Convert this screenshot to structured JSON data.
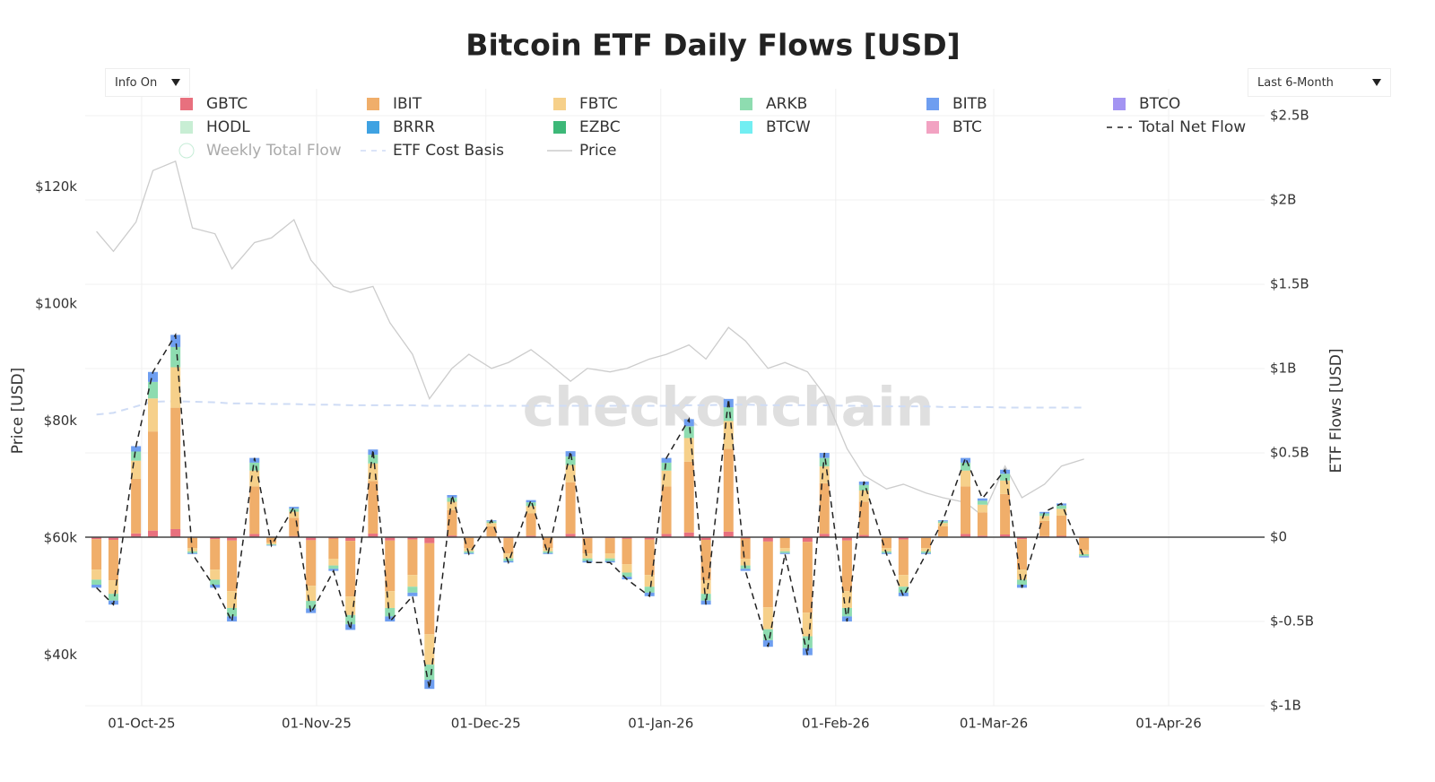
{
  "controls": {
    "info": "Info On",
    "range": "Last 6-Month"
  },
  "chart_data": {
    "type": "bar",
    "title": "Bitcoin ETF Daily Flows [USD]",
    "watermark": "checkonchain",
    "y_label": "Price [USD]",
    "y2_label": "ETF Flows [USD]",
    "x": [
      "2025-09-23",
      "2025-09-26",
      "2025-09-30",
      "2025-10-03",
      "2025-10-07",
      "2025-10-10",
      "2025-10-14",
      "2025-10-17",
      "2025-10-21",
      "2025-10-24",
      "2025-10-28",
      "2025-10-31",
      "2025-11-04",
      "2025-11-07",
      "2025-11-11",
      "2025-11-14",
      "2025-11-18",
      "2025-11-21",
      "2025-11-25",
      "2025-11-28",
      "2025-12-02",
      "2025-12-05",
      "2025-12-09",
      "2025-12-12",
      "2025-12-16",
      "2025-12-19",
      "2025-12-23",
      "2025-12-26",
      "2025-12-30",
      "2026-01-02",
      "2026-01-06",
      "2026-01-09",
      "2026-01-13",
      "2026-01-16",
      "2026-01-20",
      "2026-01-23",
      "2026-01-27",
      "2026-01-30",
      "2026-02-03",
      "2026-02-06",
      "2026-02-10",
      "2026-02-13",
      "2026-02-17",
      "2026-02-20",
      "2026-02-24",
      "2026-02-27",
      "2026-03-03",
      "2026-03-06",
      "2026-03-10",
      "2026-03-13",
      "2026-03-17"
    ],
    "xlim": [
      "2025-09-21",
      "2026-04-18"
    ],
    "xticks": [
      {
        "value": "2025-10-01",
        "label": "01-Oct-25"
      },
      {
        "value": "2025-11-01",
        "label": "01-Nov-25"
      },
      {
        "value": "2025-12-01",
        "label": "01-Dec-25"
      },
      {
        "value": "2026-01-01",
        "label": "01-Jan-26"
      },
      {
        "value": "2026-02-01",
        "label": "01-Feb-26"
      },
      {
        "value": "2026-03-01",
        "label": "01-Mar-26"
      },
      {
        "value": "2026-04-01",
        "label": "01-Apr-26"
      }
    ],
    "ylim": [
      31340,
      132180
    ],
    "yticks": [
      {
        "value": 40000,
        "label": "$40k"
      },
      {
        "value": 60000,
        "label": "$60k"
      },
      {
        "value": 80000,
        "label": "$80k"
      },
      {
        "value": 100000,
        "label": "$100k"
      },
      {
        "value": 120000,
        "label": "$120k"
      }
    ],
    "y2lim": [
      -1000000000.0,
      2500000000.0
    ],
    "y2ticks": [
      {
        "value": -1000000000.0,
        "label": "$-1B"
      },
      {
        "value": -500000000.0,
        "label": "$-0.5B"
      },
      {
        "value": 0,
        "label": "$0"
      },
      {
        "value": 500000000.0,
        "label": "$0.5B"
      },
      {
        "value": 1000000000.0,
        "label": "$1B"
      },
      {
        "value": 1500000000.0,
        "label": "$1.5B"
      },
      {
        "value": 2000000000.0,
        "label": "$2B"
      },
      {
        "value": 2500000000.0,
        "label": "$2.5B"
      }
    ],
    "grid": true,
    "series": [
      {
        "name": "GBTC",
        "kind": "bar",
        "axis": "y2",
        "color": "#e8707e",
        "values": [
          -12000000.0,
          -16000000.0,
          22000000.0,
          39000000.0,
          48000000.0,
          -4000000.0,
          -12000000.0,
          -20000000.0,
          19000000.0,
          -2000000.0,
          7000000.0,
          -18000000.0,
          -8000000.0,
          -22000000.0,
          21000000.0,
          -20000000.0,
          -14000000.0,
          -36000000.0,
          10000000.0,
          -4000000.0,
          4000000.0,
          -6000000.0,
          9000000.0,
          -4000000.0,
          20000000.0,
          -6000000.0,
          -6000000.0,
          -10000000.0,
          -14000000.0,
          19000000.0,
          28000000.0,
          -16000000.0,
          33000000.0,
          -8000000.0,
          -26000000.0,
          -4000000.0,
          -28000000.0,
          20000000.0,
          -20000000.0,
          13000000.0,
          -4000000.0,
          -14000000.0,
          -4000000.0,
          4000000.0,
          19000000.0,
          9000000.0,
          16000000.0,
          -12000000.0,
          6000000.0,
          8000000.0,
          -5000000.0
        ]
      },
      {
        "name": "IBIT",
        "kind": "bar",
        "axis": "y2",
        "color": "#f0ae6a",
        "values": [
          -180000000.0,
          -240000000.0,
          324000000.0,
          588000000.0,
          720000000.0,
          -60000000.0,
          -180000000.0,
          -300000000.0,
          282000000.0,
          -30000000.0,
          108000000.0,
          -270000000.0,
          -120000000.0,
          -330000000.0,
          312000000.0,
          -300000000.0,
          -210000000.0,
          -540000000.0,
          150000000.0,
          -60000000.0,
          60000000.0,
          -90000000.0,
          132000000.0,
          -60000000.0,
          306000000.0,
          -90000000.0,
          -90000000.0,
          -150000000.0,
          -210000000.0,
          282000000.0,
          420000000.0,
          -240000000.0,
          492000000.0,
          -120000000.0,
          -390000000.0,
          -60000000.0,
          -420000000.0,
          300000000.0,
          -300000000.0,
          198000000.0,
          -60000000.0,
          -210000000.0,
          -60000000.0,
          60000000.0,
          282000000.0,
          138000000.0,
          240000000.0,
          -180000000.0,
          90000000.0,
          120000000.0,
          -72000000.0
        ]
      },
      {
        "name": "FBTC",
        "kind": "bar",
        "axis": "y2",
        "color": "#f6d08a",
        "values": [
          -60000000.0,
          -80000000.0,
          108000000.0,
          196000000.0,
          240000000.0,
          -20000000.0,
          -60000000.0,
          -100000000.0,
          94000000.0,
          -10000000.0,
          36000000.0,
          -90000000.0,
          -40000000.0,
          -110000000.0,
          104000000.0,
          -100000000.0,
          -70000000.0,
          -180000000.0,
          50000000.0,
          -20000000.0,
          20000000.0,
          -30000000.0,
          44000000.0,
          -20000000.0,
          102000000.0,
          -30000000.0,
          -30000000.0,
          -50000000.0,
          -70000000.0,
          94000000.0,
          140000000.0,
          -80000000.0,
          164000000.0,
          -40000000.0,
          -130000000.0,
          -20000000.0,
          -140000000.0,
          100000000.0,
          -100000000.0,
          66000000.0,
          -20000000.0,
          -70000000.0,
          -20000000.0,
          20000000.0,
          94000000.0,
          46000000.0,
          80000000.0,
          -60000000.0,
          30000000.0,
          40000000.0,
          -24000000.0
        ]
      },
      {
        "name": "ARKB",
        "kind": "bar",
        "axis": "y2",
        "color": "#8edcb0",
        "values": [
          -30000000.0,
          -40000000.0,
          54000000.0,
          98000000.0,
          120000000.0,
          -10000000.0,
          -30000000.0,
          -50000000.0,
          47000000.0,
          -5000000.0,
          18000000.0,
          -45000000.0,
          -20000000.0,
          -55000000.0,
          52000000.0,
          -50000000.0,
          -35000000.0,
          -90000000.0,
          25000000.0,
          -10000000.0,
          10000000.0,
          -15000000.0,
          22000000.0,
          -10000000.0,
          51000000.0,
          -15000000.0,
          -15000000.0,
          -25000000.0,
          -35000000.0,
          47000000.0,
          70000000.0,
          -40000000.0,
          82000000.0,
          -20000000.0,
          -65000000.0,
          -10000000.0,
          -70000000.0,
          50000000.0,
          -50000000.0,
          33000000.0,
          -10000000.0,
          -35000000.0,
          -10000000.0,
          10000000.0,
          47000000.0,
          23000000.0,
          40000000.0,
          -30000000.0,
          15000000.0,
          20000000.0,
          -12000000.0
        ]
      },
      {
        "name": "BITB",
        "kind": "bar",
        "axis": "y2",
        "color": "#6e9ef0",
        "values": [
          -18000000.0,
          -24000000.0,
          32000000.0,
          59000000.0,
          72000000.0,
          -6000000.0,
          -18000000.0,
          -30000000.0,
          28000000.0,
          -3000000.0,
          11000000.0,
          -27000000.0,
          -12000000.0,
          -33000000.0,
          31000000.0,
          -30000000.0,
          -21000000.0,
          -54000000.0,
          15000000.0,
          -6000000.0,
          6000000.0,
          -9000000.0,
          13000000.0,
          -6000000.0,
          31000000.0,
          -9000000.0,
          -9000000.0,
          -15000000.0,
          -21000000.0,
          28000000.0,
          42000000.0,
          -24000000.0,
          49000000.0,
          -12000000.0,
          -39000000.0,
          -6000000.0,
          -42000000.0,
          30000000.0,
          -30000000.0,
          20000000.0,
          -6000000.0,
          -21000000.0,
          -6000000.0,
          6000000.0,
          28000000.0,
          14000000.0,
          24000000.0,
          -18000000.0,
          9000000.0,
          12000000.0,
          -7000000.0
        ]
      },
      {
        "name": "BTCO",
        "kind": "bar",
        "axis": "y2",
        "color": "#a394f2",
        "values": [
          0,
          0,
          0,
          0,
          0,
          0,
          0,
          0,
          0,
          0,
          0,
          0,
          0,
          0,
          0,
          0,
          0,
          0,
          0,
          0,
          0,
          0,
          0,
          0,
          0,
          0,
          0,
          0,
          0,
          0,
          0,
          0,
          0,
          0,
          0,
          0,
          0,
          0,
          0,
          0,
          0,
          0,
          0,
          0,
          0,
          0,
          0,
          0,
          0,
          0,
          0
        ]
      },
      {
        "name": "HODL",
        "kind": "bar",
        "axis": "y2",
        "color": "#c8eed4",
        "values": [
          0,
          0,
          0,
          0,
          0,
          0,
          0,
          0,
          0,
          0,
          0,
          0,
          0,
          0,
          0,
          0,
          0,
          0,
          0,
          0,
          0,
          0,
          0,
          0,
          0,
          0,
          0,
          0,
          0,
          0,
          0,
          0,
          0,
          0,
          0,
          0,
          0,
          0,
          0,
          0,
          0,
          0,
          0,
          0,
          0,
          0,
          0,
          0,
          0,
          0,
          0
        ]
      },
      {
        "name": "BRRR",
        "kind": "bar",
        "axis": "y2",
        "color": "#3fa2e2",
        "values": [
          0,
          0,
          0,
          0,
          0,
          0,
          0,
          0,
          0,
          0,
          0,
          0,
          0,
          0,
          0,
          0,
          0,
          0,
          0,
          0,
          0,
          0,
          0,
          0,
          0,
          0,
          0,
          0,
          0,
          0,
          0,
          0,
          0,
          0,
          0,
          0,
          0,
          0,
          0,
          0,
          0,
          0,
          0,
          0,
          0,
          0,
          0,
          0,
          0,
          0,
          0
        ]
      },
      {
        "name": "EZBC",
        "kind": "bar",
        "axis": "y2",
        "color": "#3db878",
        "values": [
          0,
          0,
          0,
          0,
          0,
          0,
          0,
          0,
          0,
          0,
          0,
          0,
          0,
          0,
          0,
          0,
          0,
          0,
          0,
          0,
          0,
          0,
          0,
          0,
          0,
          0,
          0,
          0,
          0,
          0,
          0,
          0,
          0,
          0,
          0,
          0,
          0,
          0,
          0,
          0,
          0,
          0,
          0,
          0,
          0,
          0,
          0,
          0,
          0,
          0,
          0
        ]
      },
      {
        "name": "BTCW",
        "kind": "bar",
        "axis": "y2",
        "color": "#72eef2",
        "values": [
          0,
          0,
          0,
          0,
          0,
          0,
          0,
          0,
          0,
          0,
          0,
          0,
          0,
          0,
          0,
          0,
          0,
          0,
          0,
          0,
          0,
          0,
          0,
          0,
          0,
          0,
          0,
          0,
          0,
          0,
          0,
          0,
          0,
          0,
          0,
          0,
          0,
          0,
          0,
          0,
          0,
          0,
          0,
          0,
          0,
          0,
          0,
          0,
          0,
          0,
          0
        ]
      },
      {
        "name": "BTC",
        "kind": "bar",
        "axis": "y2",
        "color": "#f2a2c2",
        "values": [
          0,
          0,
          0,
          0,
          0,
          0,
          0,
          0,
          0,
          0,
          0,
          0,
          0,
          0,
          0,
          0,
          0,
          0,
          0,
          0,
          0,
          0,
          0,
          0,
          0,
          0,
          0,
          0,
          0,
          0,
          0,
          0,
          0,
          0,
          0,
          0,
          0,
          0,
          0,
          0,
          0,
          0,
          0,
          0,
          0,
          0,
          0,
          0,
          0,
          0,
          0
        ]
      },
      {
        "name": "Total Net Flow",
        "kind": "line",
        "axis": "y2",
        "dash": true,
        "color": "#222222",
        "values": [
          -300000000.0,
          -400000000.0,
          540000000.0,
          980000000.0,
          1200000000.0,
          -100000000.0,
          -300000000.0,
          -500000000.0,
          470000000.0,
          -50000000.0,
          180000000.0,
          -450000000.0,
          -200000000.0,
          -550000000.0,
          520000000.0,
          -500000000.0,
          -350000000.0,
          -900000000.0,
          250000000.0,
          -100000000.0,
          100000000.0,
          -150000000.0,
          220000000.0,
          -100000000.0,
          510000000.0,
          -150000000.0,
          -150000000.0,
          -250000000.0,
          -350000000.0,
          470000000.0,
          700000000.0,
          -400000000.0,
          820000000.0,
          -200000000.0,
          -650000000.0,
          -100000000.0,
          -700000000.0,
          500000000.0,
          -500000000.0,
          330000000.0,
          -100000000.0,
          -350000000.0,
          -100000000.0,
          100000000.0,
          470000000.0,
          230000000.0,
          400000000.0,
          -300000000.0,
          150000000.0,
          200000000.0,
          -120000000.0
        ]
      },
      {
        "name": "Weekly Total Flow",
        "kind": "line",
        "axis": "y2",
        "visible": false,
        "color": "#8edcb0"
      },
      {
        "name": "ETF Cost Basis",
        "kind": "line",
        "dash": true,
        "color": "#cfdcf5",
        "values": [
          81100,
          81400,
          82500,
          83300,
          83400,
          83300,
          83200,
          83000,
          83000,
          82900,
          82900,
          82800,
          82800,
          82700,
          82700,
          82700,
          82700,
          82600,
          82600,
          82600,
          82600,
          82600,
          82600,
          82600,
          82600,
          82600,
          82600,
          82600,
          82600,
          82600,
          82700,
          82700,
          82800,
          82800,
          82700,
          82700,
          82700,
          82700,
          82600,
          82600,
          82500,
          82500,
          82500,
          82400,
          82400,
          82400,
          82300,
          82300,
          82300,
          82300,
          82300
        ]
      },
      {
        "name": "Price",
        "kind": "line",
        "color": "#cccccc",
        "values": [
          112400,
          109000,
          114000,
          122800,
          124400,
          113000,
          112000,
          106000,
          110500,
          111300,
          114400,
          107500,
          103000,
          102000,
          103000,
          96800,
          91400,
          83800,
          89000,
          91400,
          89000,
          90000,
          92200,
          90000,
          86800,
          89000,
          88400,
          89000,
          90600,
          91400,
          93000,
          90600,
          96000,
          93700,
          89000,
          90000,
          88400,
          84500,
          75300,
          70700,
          68400,
          69200,
          67700,
          66900,
          66100,
          63800,
          72300,
          66900,
          69200,
          72300,
          73500
        ]
      }
    ]
  }
}
